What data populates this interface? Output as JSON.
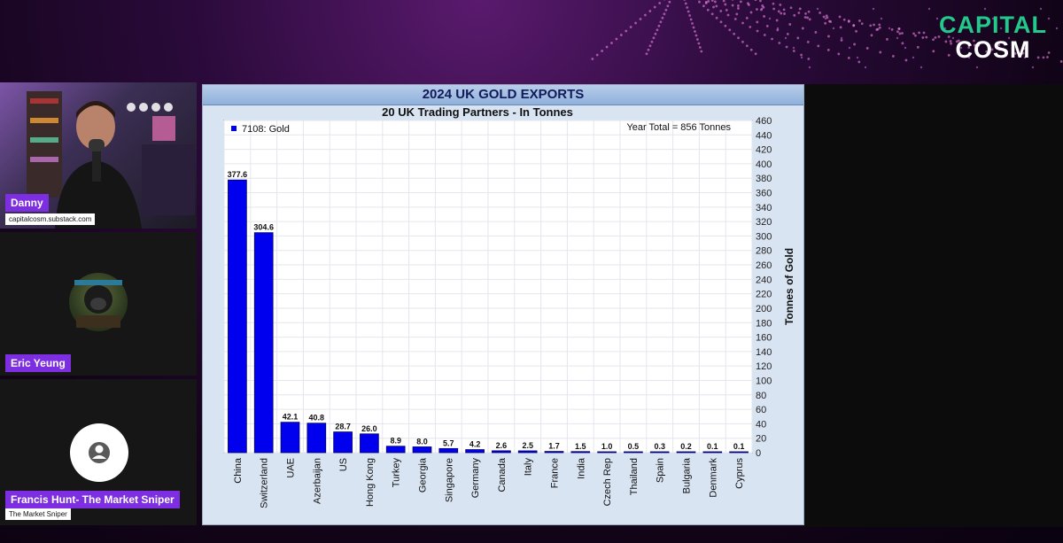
{
  "brand": {
    "line1": "CAPITAL",
    "line2": "COSM"
  },
  "participants": [
    {
      "name": "Danny",
      "subtitle": "capitalcosm.substack.com"
    },
    {
      "name": "Eric Yeung"
    },
    {
      "name": "Francis Hunt- The Market Sniper",
      "subtitle": "The Market Sniper"
    }
  ],
  "icons": {
    "placeholder_avatar": "user-silhouette-icon"
  },
  "colors": {
    "bar": "#0000ee",
    "name_tag": "#7c2ee0",
    "brand_green": "#22c98a"
  },
  "chart_data": {
    "type": "bar",
    "title": "2024 UK GOLD EXPORTS",
    "subtitle": "20 UK Trading Partners - In Tonnes",
    "legend": "7108: Gold",
    "annotation": "Year Total = 856 Tonnes",
    "ylabel": "Tonnes of Gold",
    "ylim": [
      0,
      460
    ],
    "ytick_step": 20,
    "grid": true,
    "legend_position": "top-left",
    "y_axis_side": "right",
    "categories": [
      "China",
      "Switzerland",
      "UAE",
      "Azerbaijan",
      "US",
      "Hong Kong",
      "Turkey",
      "Georgia",
      "Singapore",
      "Germany",
      "Canada",
      "Italy",
      "France",
      "India",
      "Czech Rep",
      "Thailand",
      "Spain",
      "Bulgaria",
      "Denmark",
      "Cyprus"
    ],
    "values": [
      377.6,
      304.6,
      42.1,
      40.8,
      28.7,
      26.0,
      8.9,
      8.0,
      5.7,
      4.2,
      2.6,
      2.5,
      1.7,
      1.5,
      1.0,
      0.5,
      0.3,
      0.2,
      0.1,
      0.1
    ],
    "value_labels": [
      "377.6",
      "304.6",
      "42.1",
      "40.8",
      "28.7",
      "26.0",
      "8.9",
      "8.0",
      "5.7",
      "4.2",
      "2.6",
      "2.5",
      "1.7",
      "1.5",
      "1.0",
      "0.5",
      "0.3",
      "0.2",
      "0.1",
      "0.1"
    ]
  }
}
